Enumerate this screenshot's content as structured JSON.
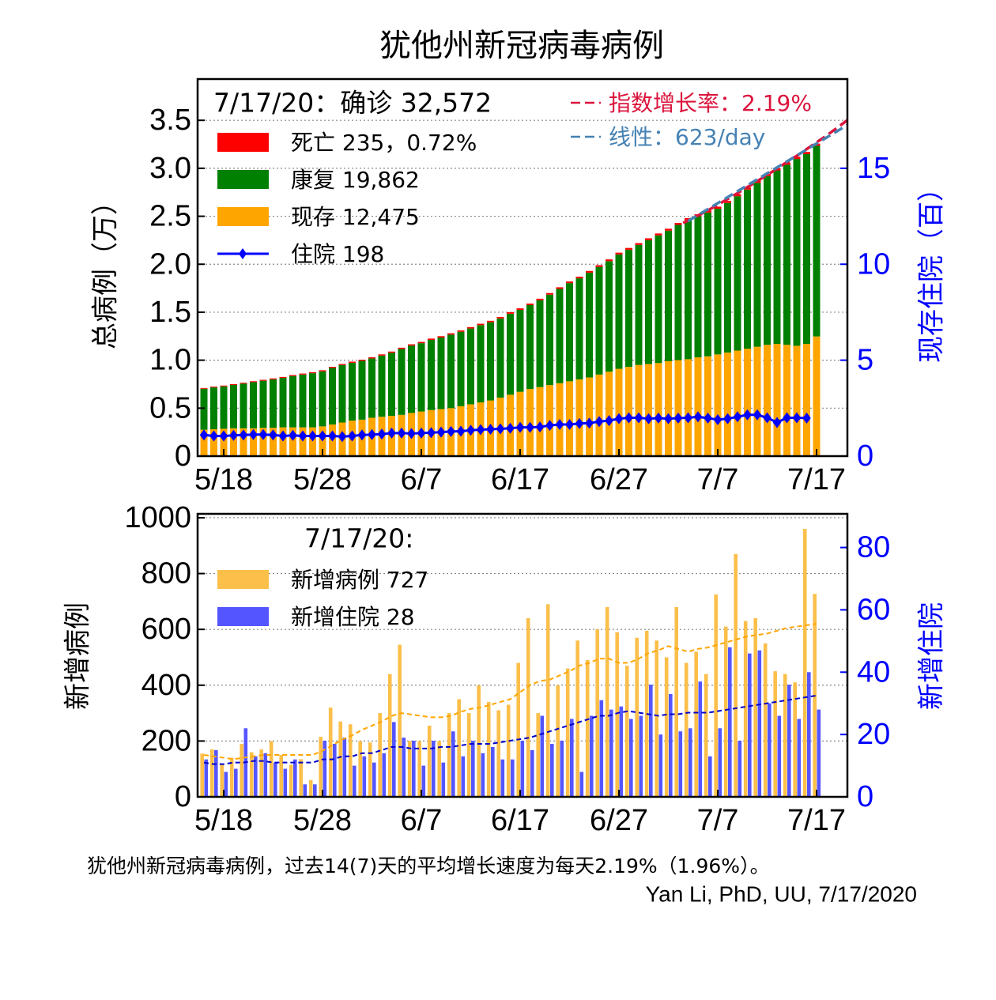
{
  "chart_data": [
    {
      "type": "bar",
      "stacked": true,
      "grid": true,
      "title": "犹他州新冠病毒病例",
      "ylabel": "总病例（万）",
      "y2label": "现存住院（百）",
      "legend_title": "7/17/20：确诊 32,572",
      "legend": "upper left",
      "categories": [
        null,
        null,
        "5/18",
        null,
        null,
        null,
        null,
        null,
        null,
        null,
        null,
        null,
        "5/28",
        null,
        null,
        null,
        null,
        null,
        null,
        null,
        null,
        null,
        "6/7",
        null,
        null,
        null,
        null,
        null,
        null,
        null,
        null,
        null,
        "6/17",
        null,
        null,
        null,
        null,
        null,
        null,
        null,
        null,
        null,
        "6/27",
        null,
        null,
        null,
        null,
        null,
        null,
        null,
        null,
        null,
        "7/7",
        null,
        null,
        null,
        null,
        null,
        null,
        null,
        null,
        null,
        "7/17"
      ],
      "ylim": [
        0,
        3.93
      ],
      "yticks": [
        0,
        0.5,
        {
          "value": 1,
          "label": "1.0"
        },
        1.5,
        {
          "value": 2,
          "label": "2.0"
        },
        2.5,
        {
          "value": 3,
          "label": "3.0"
        },
        3.5
      ],
      "y2lim": [
        0,
        19.65
      ],
      "y2ticks": [
        0,
        5,
        10,
        15
      ],
      "series": [
        {
          "name": "死亡 235，0.72%",
          "kind": "bar",
          "color": "#ff0000",
          "values": [
            0.008,
            0.0083,
            0.0085,
            0.0088,
            0.009,
            0.0093,
            0.0095,
            0.0098,
            0.01,
            0.0103,
            0.0105,
            0.0108,
            0.011,
            0.0113,
            0.0115,
            0.0118,
            0.012,
            0.0123,
            0.0125,
            0.0128,
            0.013,
            0.0133,
            0.0135,
            0.0138,
            0.014,
            0.0143,
            0.0145,
            0.0148,
            0.015,
            0.0153,
            0.0155,
            0.0158,
            0.016,
            0.0163,
            0.0165,
            0.0168,
            0.017,
            0.0173,
            0.0175,
            0.0178,
            0.018,
            0.0183,
            0.0185,
            0.0188,
            0.019,
            0.0193,
            0.0195,
            0.0198,
            0.02,
            0.0203,
            0.0205,
            0.0208,
            0.021,
            0.0213,
            0.0215,
            0.0218,
            0.022,
            0.0223,
            0.0225,
            0.0228,
            0.023,
            0.0233,
            0.0235
          ]
        },
        {
          "name": "康复 19,862",
          "kind": "bar",
          "color": "#008000",
          "values": [
            0.427,
            0.436,
            0.442,
            0.451,
            0.466,
            0.481,
            0.491,
            0.505,
            0.515,
            0.535,
            0.55,
            0.564,
            0.574,
            0.589,
            0.599,
            0.603,
            0.613,
            0.618,
            0.638,
            0.657,
            0.687,
            0.702,
            0.712,
            0.731,
            0.746,
            0.766,
            0.776,
            0.79,
            0.805,
            0.815,
            0.825,
            0.844,
            0.854,
            0.874,
            0.904,
            0.943,
            0.983,
            1.023,
            1.053,
            1.092,
            1.122,
            1.152,
            1.192,
            1.221,
            1.251,
            1.291,
            1.331,
            1.36,
            1.41,
            1.45,
            1.47,
            1.499,
            1.519,
            1.559,
            1.609,
            1.658,
            1.708,
            1.758,
            1.808,
            1.877,
            1.947,
            1.977,
            1.9862
          ]
        },
        {
          "name": "现存 12,475",
          "kind": "bar",
          "color": "#ffa500",
          "values": [
            0.275,
            0.28,
            0.285,
            0.29,
            0.29,
            0.29,
            0.295,
            0.295,
            0.3,
            0.3,
            0.3,
            0.3,
            0.31,
            0.33,
            0.35,
            0.37,
            0.38,
            0.4,
            0.41,
            0.42,
            0.43,
            0.45,
            0.465,
            0.48,
            0.49,
            0.5,
            0.52,
            0.54,
            0.56,
            0.58,
            0.61,
            0.64,
            0.67,
            0.7,
            0.72,
            0.74,
            0.76,
            0.78,
            0.8,
            0.82,
            0.85,
            0.88,
            0.91,
            0.93,
            0.95,
            0.96,
            0.97,
            0.99,
            1.0,
            1.01,
            1.03,
            1.04,
            1.06,
            1.08,
            1.1,
            1.12,
            1.14,
            1.16,
            1.17,
            1.16,
            1.15,
            1.17,
            1.2475
          ]
        },
        {
          "name": "住院 198",
          "kind": "line",
          "axis": "y2",
          "marker": "diamond",
          "color": "#0000ff",
          "values": [
            1.1,
            1.05,
            1.05,
            1.08,
            1.1,
            1.12,
            1.12,
            1.1,
            1.05,
            1.08,
            1.05,
            1.05,
            1.05,
            1.05,
            1.02,
            1.05,
            1.1,
            1.12,
            1.15,
            1.2,
            1.2,
            1.18,
            1.2,
            1.22,
            1.25,
            1.28,
            1.3,
            1.35,
            1.38,
            1.4,
            1.42,
            1.45,
            1.5,
            1.5,
            1.52,
            1.6,
            1.65,
            1.65,
            1.7,
            1.72,
            1.8,
            1.85,
            1.95,
            2.0,
            2.0,
            1.95,
            1.98,
            1.95,
            1.98,
            2.0,
            2.05,
            1.98,
            1.9,
            1.95,
            2.05,
            2.15,
            2.15,
            2.0,
            1.75,
            2.0,
            2.0,
            1.98,
            null
          ]
        }
      ],
      "fits": [
        {
          "name": "指数增长率：2.19%",
          "color": "#dc143c",
          "x": [
            48.5,
            51,
            54,
            57,
            60,
            63,
            65.1
          ],
          "values": [
            2.43,
            2.56,
            2.74,
            2.93,
            3.13,
            3.34,
            3.5
          ]
        },
        {
          "name": "线性：623/day",
          "color": "#4682b4",
          "x": [
            49,
            65.1
          ],
          "values": [
            2.45,
            3.45
          ]
        }
      ]
    },
    {
      "type": "bar",
      "stacked": false,
      "grid": true,
      "ylabel": "新增病例",
      "y2label": "新增住院",
      "legend_title": "7/17/20:",
      "legend": "upper left",
      "categories": [
        null,
        null,
        "5/18",
        null,
        null,
        null,
        null,
        null,
        null,
        null,
        null,
        null,
        "5/28",
        null,
        null,
        null,
        null,
        null,
        null,
        null,
        null,
        null,
        "6/7",
        null,
        null,
        null,
        null,
        null,
        null,
        null,
        null,
        null,
        "6/17",
        null,
        null,
        null,
        null,
        null,
        null,
        null,
        null,
        null,
        "6/27",
        null,
        null,
        null,
        null,
        null,
        null,
        null,
        null,
        null,
        "7/7",
        null,
        null,
        null,
        null,
        null,
        null,
        null,
        null,
        null,
        "7/17"
      ],
      "ylim": [
        0,
        1014
      ],
      "yticks": [
        0,
        200,
        400,
        600,
        800,
        1000
      ],
      "y2lim": [
        0,
        90.8
      ],
      "y2ticks": [
        0,
        20,
        40,
        60,
        80
      ],
      "series": [
        {
          "name": "新增病例 727",
          "kind": "bar",
          "color": "#fbbf4a",
          "values": [
            155,
            170,
            115,
            140,
            190,
            160,
            170,
            200,
            150,
            115,
            135,
            60,
            215,
            320,
            270,
            260,
            200,
            195,
            300,
            440,
            545,
            200,
            200,
            255,
            200,
            300,
            350,
            300,
            400,
            340,
            310,
            330,
            480,
            640,
            300,
            690,
            400,
            460,
            560,
            490,
            600,
            680,
            590,
            470,
            570,
            595,
            560,
            500,
            680,
            480,
            520,
            440,
            725,
            610,
            870,
            630,
            640,
            550,
            450,
            440,
            410,
            960,
            727
          ]
        },
        {
          "name": "新增住院 28",
          "kind": "bar",
          "axis": "y2",
          "color": "#5555ff",
          "values": [
            12,
            15,
            8,
            9,
            22,
            13,
            14,
            11,
            9,
            12,
            4,
            4,
            18,
            17,
            19,
            10,
            13,
            11,
            14,
            24,
            19,
            18,
            10,
            18,
            11,
            21,
            13,
            18,
            14,
            16,
            12,
            12,
            18,
            15,
            26,
            17,
            18,
            25,
            8,
            26,
            31,
            28,
            29,
            25,
            26,
            36,
            20,
            33,
            21,
            22,
            37,
            13,
            22,
            48,
            18,
            46,
            47,
            30,
            26,
            36,
            25,
            40,
            28
          ]
        }
      ],
      "moving_averages": [
        {
          "color": "#ffa500",
          "values": [
            150,
            145,
            140,
            135,
            140,
            145,
            150,
            150,
            150,
            150,
            150,
            150,
            165,
            185,
            205,
            220,
            240,
            255,
            270,
            290,
            300,
            295,
            290,
            285,
            285,
            290,
            305,
            315,
            320,
            330,
            340,
            350,
            375,
            400,
            415,
            420,
            435,
            450,
            470,
            480,
            495,
            495,
            480,
            480,
            495,
            515,
            525,
            540,
            530,
            520,
            530,
            535,
            545,
            555,
            565,
            575,
            580,
            585,
            595,
            605,
            610,
            615,
            620
          ]
        },
        {
          "color": "#0000cc",
          "axis": "y2",
          "values": [
            11,
            10.5,
            10.5,
            11,
            11,
            11.5,
            11.5,
            11,
            11,
            11,
            11,
            11,
            12,
            12,
            13,
            13,
            14,
            14,
            15,
            16,
            16,
            15.5,
            15.5,
            15.5,
            16,
            16,
            16.5,
            17,
            17,
            17,
            17.5,
            18,
            18.5,
            19,
            20,
            21,
            22,
            23,
            24,
            25,
            26,
            26,
            27,
            27.5,
            27,
            26.5,
            26,
            26.5,
            26.5,
            27,
            27,
            27,
            27.5,
            28,
            28.5,
            29,
            29.5,
            30,
            30.5,
            31,
            31.5,
            32,
            32.5
          ]
        }
      ]
    }
  ],
  "notes": [
    "犹他州新冠病毒病例，过去14(7)天的平均增长速度为每天2.19%（1.96%）。",
    "Yan Li, PhD, UU, 7/17/2020"
  ]
}
